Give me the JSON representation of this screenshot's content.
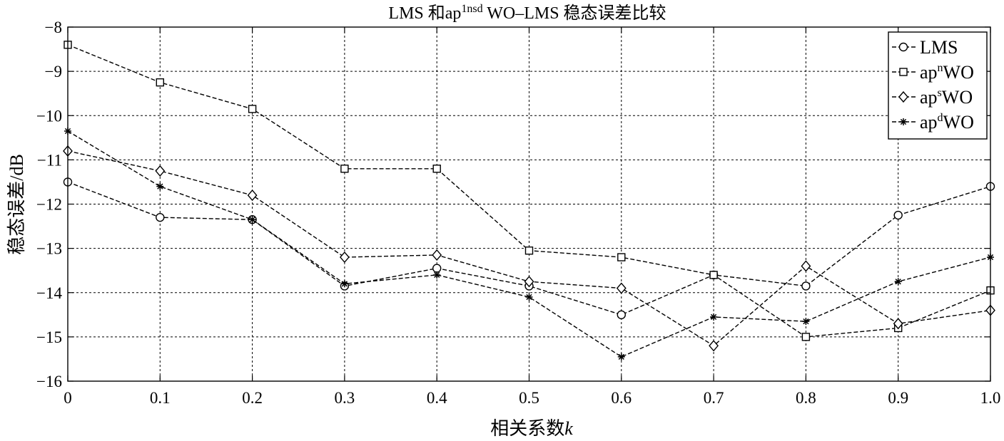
{
  "chart_data": {
    "type": "line",
    "title": {
      "main": "LMS 和ap",
      "sup": "1nsd",
      "rest": " WO–LMS 稳态误差比较"
    },
    "xlabel": {
      "text": "相关系数",
      "var": "k"
    },
    "ylabel": "稳态误差/dB",
    "xlim": [
      0,
      1.0
    ],
    "ylim": [
      -16,
      -8
    ],
    "grid": true,
    "legend_position": "top-right",
    "x": [
      0,
      0.1,
      0.2,
      0.3,
      0.4,
      0.5,
      0.6,
      0.7,
      0.8,
      0.9,
      1.0
    ],
    "xticks": [
      {
        "value": 0,
        "label": "0"
      },
      {
        "value": 0.1,
        "label": "0.1"
      },
      {
        "value": 0.2,
        "label": "0.2"
      },
      {
        "value": 0.3,
        "label": "0.3"
      },
      {
        "value": 0.4,
        "label": "0.4"
      },
      {
        "value": 0.5,
        "label": "0.5"
      },
      {
        "value": 0.6,
        "label": "0.6"
      },
      {
        "value": 0.7,
        "label": "0.7"
      },
      {
        "value": 0.8,
        "label": "0.8"
      },
      {
        "value": 0.9,
        "label": "0.9"
      },
      {
        "value": 1.0,
        "label": "1.0"
      }
    ],
    "yticks": [
      {
        "value": -8,
        "label": "−8"
      },
      {
        "value": -9,
        "label": "−9"
      },
      {
        "value": -10,
        "label": "−10"
      },
      {
        "value": -11,
        "label": "−11"
      },
      {
        "value": -12,
        "label": "−12"
      },
      {
        "value": -13,
        "label": "−13"
      },
      {
        "value": -14,
        "label": "−14"
      },
      {
        "value": -15,
        "label": "−15"
      },
      {
        "value": -16,
        "label": "−16"
      }
    ],
    "series": [
      {
        "id": "lms",
        "name": {
          "base": "LMS"
        },
        "marker": "circle",
        "values": [
          -11.5,
          -12.3,
          -12.35,
          -13.85,
          -13.45,
          -13.85,
          -14.5,
          -13.6,
          -13.85,
          -12.25,
          -11.6
        ]
      },
      {
        "id": "apn-wo",
        "name": {
          "base": "ap",
          "sup": "n",
          "tail": "WO"
        },
        "marker": "square",
        "values": [
          -8.4,
          -9.25,
          -9.85,
          -11.2,
          -11.2,
          -13.05,
          -13.2,
          -13.6,
          -15.0,
          -14.8,
          -13.95
        ]
      },
      {
        "id": "aps-wo",
        "name": {
          "base": "ap",
          "sup": "s",
          "tail": "WO"
        },
        "marker": "diamond",
        "values": [
          -10.8,
          -11.25,
          -11.8,
          -13.2,
          -13.15,
          -13.75,
          -13.9,
          -15.2,
          -13.4,
          -14.7,
          -14.4
        ]
      },
      {
        "id": "apd-wo",
        "name": {
          "base": "ap",
          "sup": "d",
          "tail": "WO"
        },
        "marker": "star",
        "values": [
          -10.35,
          -11.6,
          -12.35,
          -13.8,
          -13.6,
          -14.1,
          -15.45,
          -14.55,
          -14.65,
          -13.75,
          -13.2
        ]
      }
    ]
  }
}
